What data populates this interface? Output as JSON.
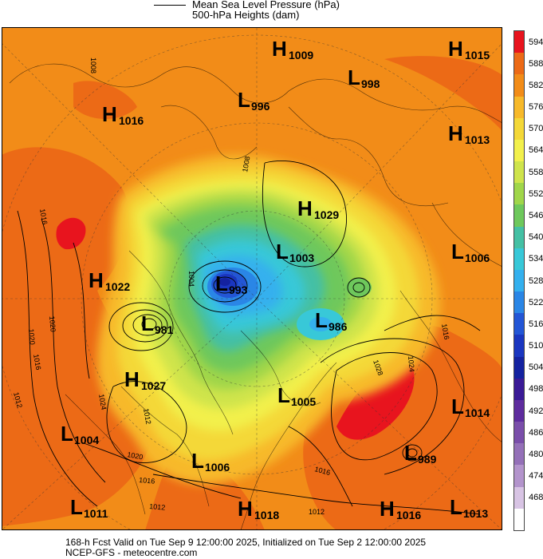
{
  "legend": {
    "line_label": "Mean Sea Level Pressure (hPa)",
    "fill_label": "500-hPa Heights (dam)"
  },
  "colorbar": {
    "levels": [
      {
        "label": "594",
        "color": "#e8141e"
      },
      {
        "label": "588",
        "color": "#ec6a16"
      },
      {
        "label": "582",
        "color": "#f28c18"
      },
      {
        "label": "576",
        "color": "#f7b92a"
      },
      {
        "label": "570",
        "color": "#f4d838"
      },
      {
        "label": "564",
        "color": "#f2f04c"
      },
      {
        "label": "558",
        "color": "#cfe44c"
      },
      {
        "label": "552",
        "color": "#a0d64a"
      },
      {
        "label": "546",
        "color": "#6ec85c"
      },
      {
        "label": "540",
        "color": "#44c0a4"
      },
      {
        "label": "534",
        "color": "#38c8d8"
      },
      {
        "label": "528",
        "color": "#34b0ee"
      },
      {
        "label": "522",
        "color": "#2a86e6"
      },
      {
        "label": "516",
        "color": "#2356d6"
      },
      {
        "label": "510",
        "color": "#1a36c0"
      },
      {
        "label": "504",
        "color": "#1422a0"
      },
      {
        "label": "498",
        "color": "#3a1a96"
      },
      {
        "label": "492",
        "color": "#5e2c9e"
      },
      {
        "label": "486",
        "color": "#7a4eaa"
      },
      {
        "label": "480",
        "color": "#9470b8"
      },
      {
        "label": "474",
        "color": "#b394cc"
      },
      {
        "label": "468",
        "color": "#d8c4e4"
      },
      {
        "label": "",
        "color": "#ffffff"
      }
    ]
  },
  "pressure_systems": [
    {
      "type": "H",
      "value": "1009"
    },
    {
      "type": "H",
      "value": "1015"
    },
    {
      "type": "L",
      "value": "998"
    },
    {
      "type": "L",
      "value": "996"
    },
    {
      "type": "H",
      "value": "1016"
    },
    {
      "type": "H",
      "value": "1013"
    },
    {
      "type": "H",
      "value": "1029"
    },
    {
      "type": "L",
      "value": "1003"
    },
    {
      "type": "L",
      "value": "1006"
    },
    {
      "type": "H",
      "value": "1022"
    },
    {
      "type": "L",
      "value": "993"
    },
    {
      "type": "L",
      "value": "981"
    },
    {
      "type": "L",
      "value": "986"
    },
    {
      "type": "H",
      "value": "1027"
    },
    {
      "type": "L",
      "value": "1005"
    },
    {
      "type": "L",
      "value": "1014"
    },
    {
      "type": "L",
      "value": "1004"
    },
    {
      "type": "L",
      "value": "989"
    },
    {
      "type": "L",
      "value": "1006"
    },
    {
      "type": "L",
      "value": "1011"
    },
    {
      "type": "H",
      "value": "1018"
    },
    {
      "type": "H",
      "value": "1016"
    },
    {
      "type": "L",
      "value": "1013"
    }
  ],
  "isobar_labels": [
    "1016",
    "1020",
    "1016",
    "1012",
    "1024",
    "1020",
    "1016",
    "1012",
    "1028",
    "1024",
    "1016",
    "1016",
    "1012",
    "1004",
    "1008",
    "1008",
    "1012",
    "1020"
  ],
  "footer": {
    "line1": "168-h Fcst Valid on Tue Sep  9 12:00:00 2025, Initialized on Tue Sep  2 12:00:00 2025",
    "line2": "NCEP-GFS - meteocentre.com"
  }
}
